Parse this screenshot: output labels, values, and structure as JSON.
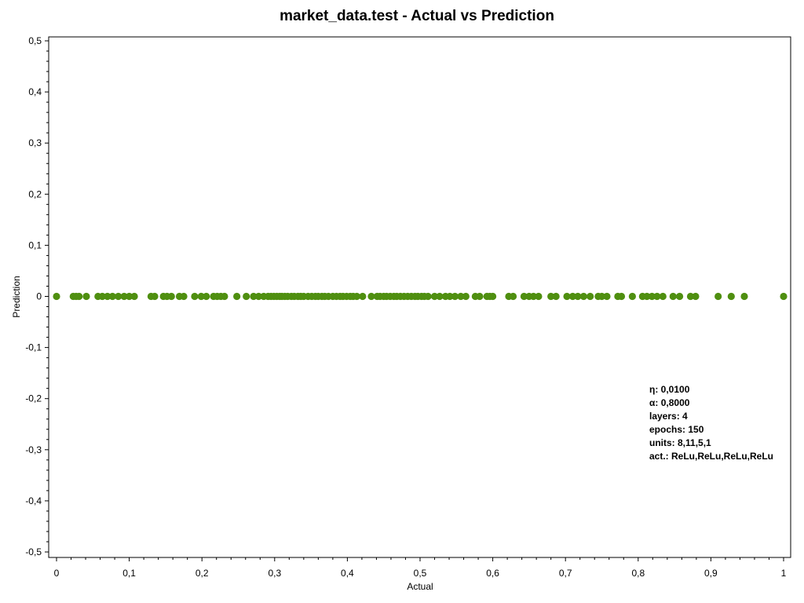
{
  "chart_data": {
    "type": "scatter",
    "title": "market_data.test - Actual vs Prediction",
    "xlabel": "Actual",
    "ylabel": "Prediction",
    "xlim": [
      0,
      1
    ],
    "ylim": [
      -0.5,
      0.5
    ],
    "x_ticks": [
      "0",
      "0,1",
      "0,2",
      "0,3",
      "0,4",
      "0,5",
      "0,6",
      "0,7",
      "0,8",
      "0,9",
      "1"
    ],
    "y_ticks": [
      "0,5",
      "0,4",
      "0,3",
      "0,2",
      "0,1",
      "0",
      "-0,1",
      "-0,2",
      "-0,3",
      "-0,4",
      "-0,5"
    ],
    "grid": false,
    "marker_color": "#4f8f10",
    "series": [
      {
        "x": [
          0.0,
          0.023,
          0.027,
          0.031,
          0.041,
          0.057,
          0.063,
          0.07,
          0.077,
          0.085,
          0.093,
          0.1,
          0.107,
          0.13,
          0.135,
          0.147,
          0.152,
          0.158,
          0.169,
          0.175,
          0.19,
          0.199,
          0.206,
          0.216,
          0.221,
          0.226,
          0.231,
          0.248,
          0.261,
          0.271,
          0.278,
          0.285,
          0.291,
          0.295,
          0.299,
          0.303,
          0.307,
          0.31,
          0.314,
          0.318,
          0.323,
          0.327,
          0.332,
          0.336,
          0.34,
          0.346,
          0.351,
          0.356,
          0.36,
          0.365,
          0.369,
          0.374,
          0.38,
          0.385,
          0.39,
          0.394,
          0.399,
          0.404,
          0.408,
          0.413,
          0.421,
          0.433,
          0.441,
          0.445,
          0.45,
          0.454,
          0.459,
          0.464,
          0.468,
          0.473,
          0.478,
          0.483,
          0.488,
          0.493,
          0.497,
          0.502,
          0.506,
          0.511,
          0.52,
          0.527,
          0.535,
          0.541,
          0.548,
          0.556,
          0.563,
          0.576,
          0.582,
          0.592,
          0.596,
          0.6,
          0.622,
          0.628,
          0.643,
          0.65,
          0.656,
          0.663,
          0.68,
          0.687,
          0.702,
          0.71,
          0.717,
          0.725,
          0.734,
          0.745,
          0.75,
          0.757,
          0.772,
          0.777,
          0.792,
          0.806,
          0.812,
          0.819,
          0.826,
          0.834,
          0.848,
          0.857,
          0.872,
          0.879,
          0.91,
          0.928,
          0.946,
          1.0
        ],
        "y": [
          0,
          0,
          0,
          0,
          0,
          0,
          0,
          0,
          0,
          0,
          0,
          0,
          0,
          0,
          0,
          0,
          0,
          0,
          0,
          0,
          0,
          0,
          0,
          0,
          0,
          0,
          0,
          0,
          0,
          0,
          0,
          0,
          0,
          0,
          0,
          0,
          0,
          0,
          0,
          0,
          0,
          0,
          0,
          0,
          0,
          0,
          0,
          0,
          0,
          0,
          0,
          0,
          0,
          0,
          0,
          0,
          0,
          0,
          0,
          0,
          0,
          0,
          0,
          0,
          0,
          0,
          0,
          0,
          0,
          0,
          0,
          0,
          0,
          0,
          0,
          0,
          0,
          0,
          0,
          0,
          0,
          0,
          0,
          0,
          0,
          0,
          0,
          0,
          0,
          0,
          0,
          0,
          0,
          0,
          0,
          0,
          0,
          0,
          0,
          0,
          0,
          0,
          0,
          0,
          0,
          0,
          0,
          0,
          0,
          0,
          0,
          0,
          0,
          0,
          0,
          0,
          0,
          0,
          0,
          0,
          0,
          0
        ]
      }
    ],
    "annotations": [
      "η: 0,0100",
      "α: 0,8000",
      "layers: 4",
      "epochs: 150",
      "units: 8,11,5,1",
      "act.: ReLu,ReLu,ReLu,ReLu"
    ]
  }
}
